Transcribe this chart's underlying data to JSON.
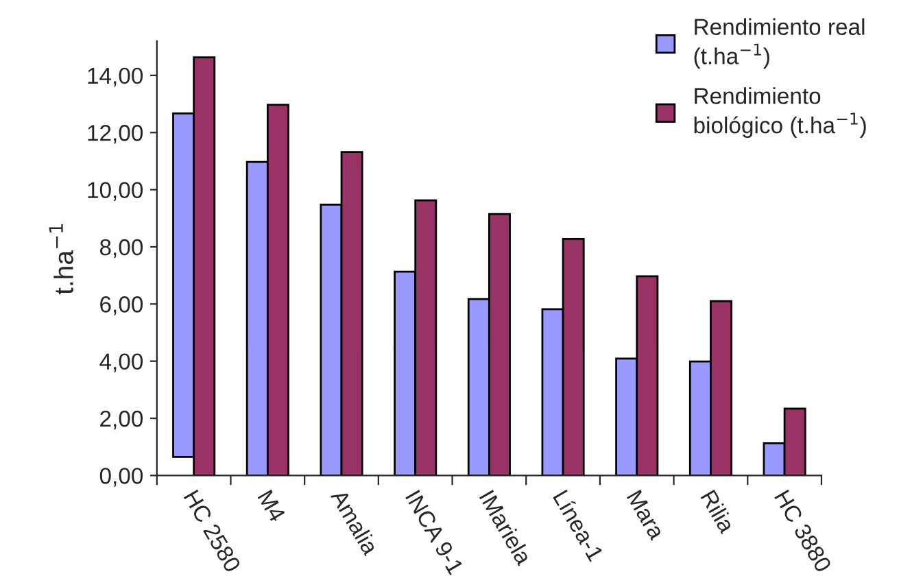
{
  "chart_data": {
    "type": "bar",
    "ylabel": "t.ha$^{−1}$",
    "categories": [
      "HC 2580",
      "M4",
      "Amalia",
      "INCA 9-1",
      "IMariela",
      "Línea-1",
      "Mara",
      "Rilia",
      "HC 3880"
    ],
    "series": [
      {
        "name": "Rendimiento real\n(t.ha$^{−1}$)",
        "color": "#9999ff",
        "base": [
          0.65,
          0,
          0,
          0,
          0,
          0,
          0,
          0,
          0
        ],
        "values": [
          12.02,
          10.97,
          9.48,
          7.13,
          6.17,
          5.82,
          4.09,
          3.99,
          1.13
        ]
      },
      {
        "name": "Rendimiento\nbiológico (t.ha$^{−1}$)",
        "color": "#993366",
        "values": [
          14.63,
          12.97,
          11.32,
          9.63,
          9.15,
          8.28,
          6.97,
          6.1,
          2.34
        ]
      }
    ],
    "ylim": [
      0,
      15.2
    ],
    "yticks": [
      {
        "value": 0,
        "label": "0,00"
      },
      {
        "value": 2,
        "label": "2,00"
      },
      {
        "value": 4,
        "label": "4,00"
      },
      {
        "value": 6,
        "label": "6,00"
      },
      {
        "value": 8,
        "label": "8,00"
      },
      {
        "value": 10,
        "label": "10,00"
      },
      {
        "value": 12,
        "label": "12,00"
      },
      {
        "value": 14,
        "label": "14,00"
      }
    ],
    "grid": false,
    "legend": "top right"
  }
}
